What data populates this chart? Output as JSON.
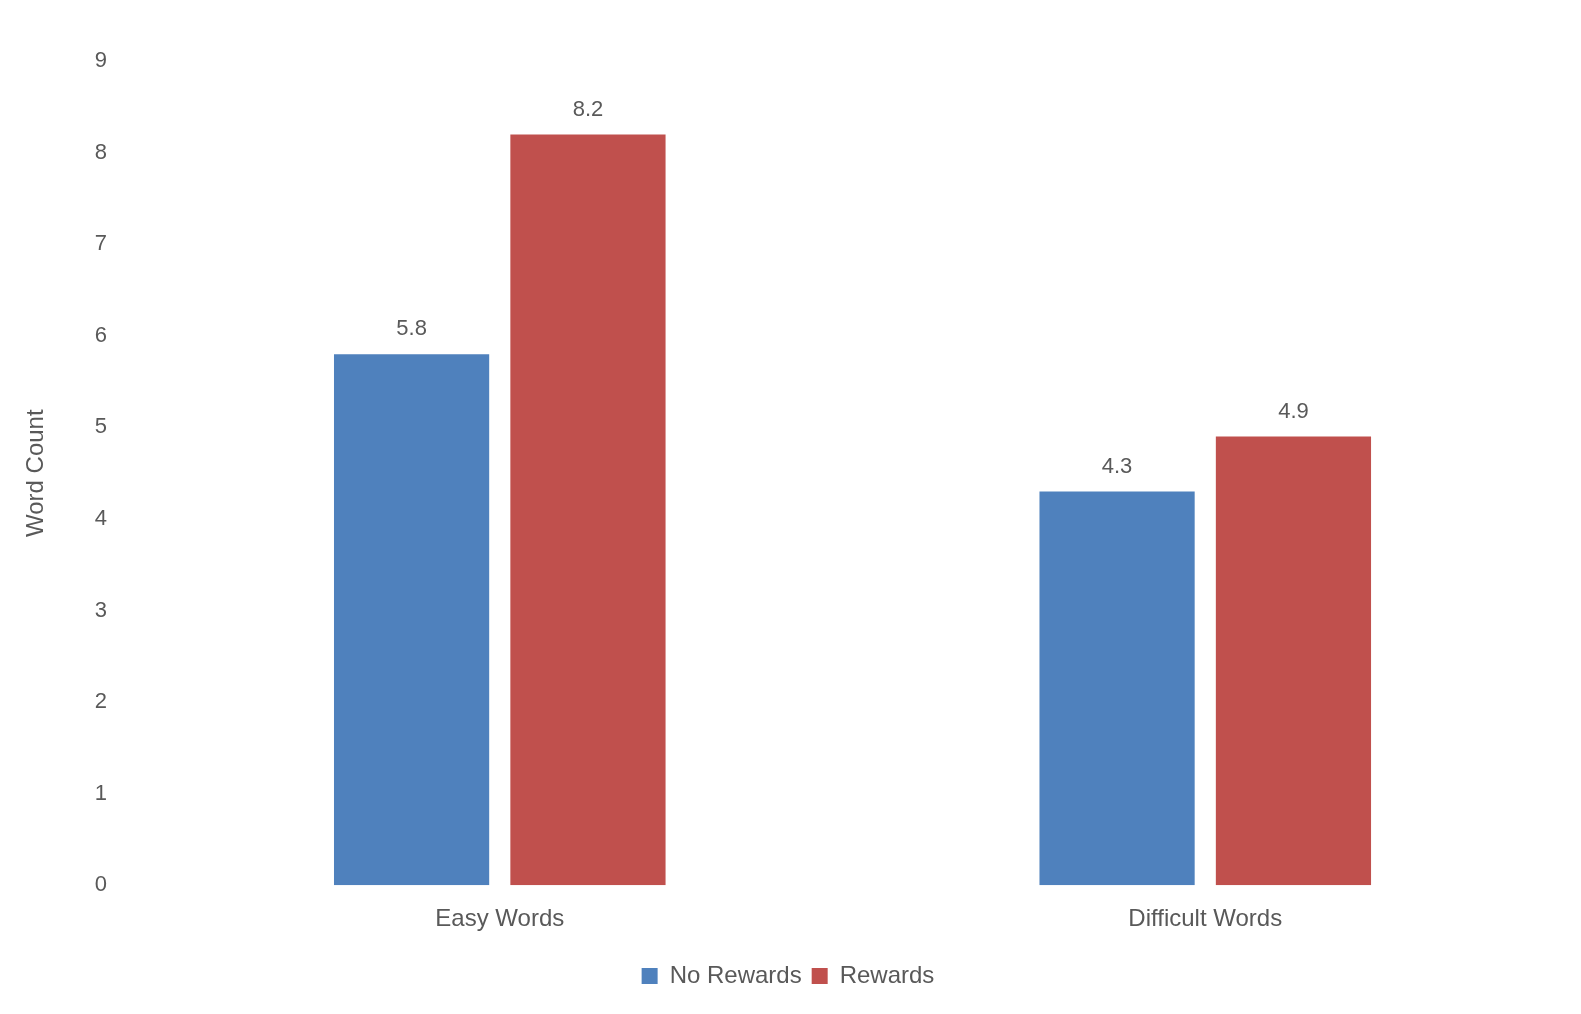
{
  "chart_data": {
    "type": "bar",
    "ylabel": "Word Count",
    "categories": [
      "Easy Words",
      "Difficult Words"
    ],
    "series": [
      {
        "name": "No Rewards",
        "color": "#4f81bd",
        "values": [
          5.8,
          4.3
        ]
      },
      {
        "name": "Rewards",
        "color": "#c0504d",
        "values": [
          8.2,
          4.9
        ]
      }
    ],
    "ylim": [
      0,
      9
    ],
    "yticks": [
      0,
      1,
      2,
      3,
      4,
      5,
      6,
      7,
      8,
      9
    ],
    "grid": false,
    "legend": "bottom",
    "data_labels": true
  }
}
